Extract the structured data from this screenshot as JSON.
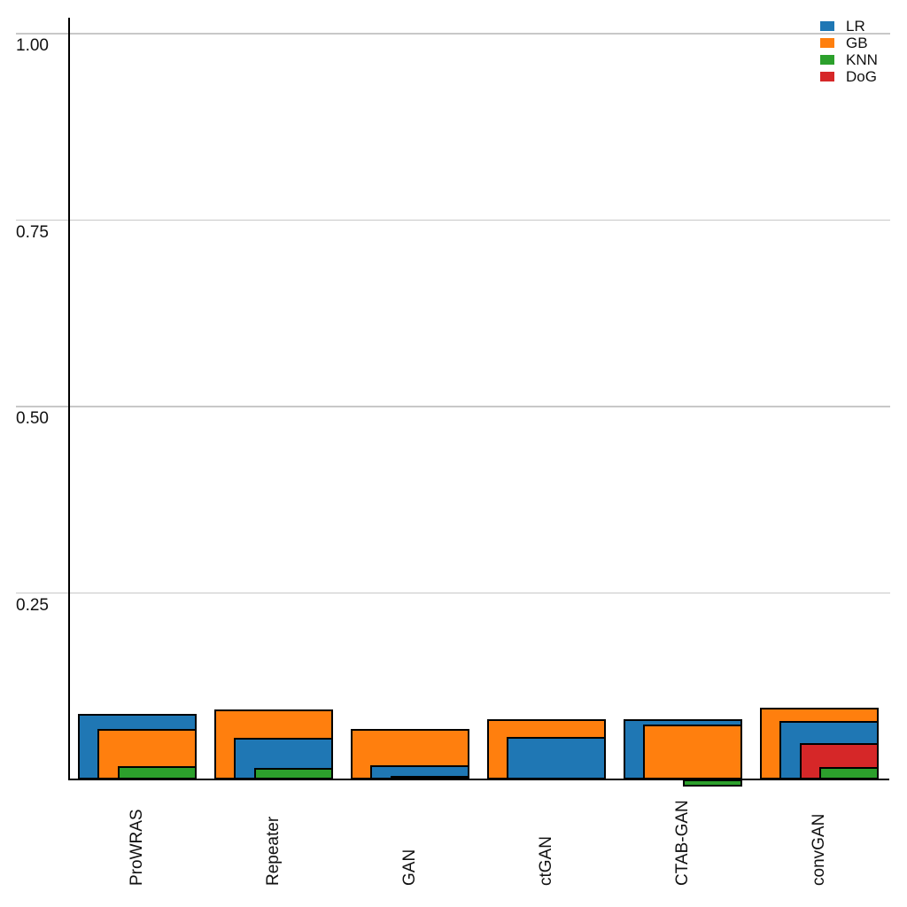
{
  "chart_data": {
    "type": "bar",
    "variant": "overlapped-nested-bars",
    "title": "",
    "xlabel": "",
    "ylabel": "",
    "categories": [
      "ProWRAS",
      "Repeater",
      "GAN",
      "ctGAN",
      "CTAB-GAN",
      "convGAN"
    ],
    "series": [
      {
        "name": "LR",
        "color": "#1f77b4",
        "values": [
          0.088,
          0.056,
          0.019,
          0.057,
          0.081,
          0.078
        ]
      },
      {
        "name": "GB",
        "color": "#ff7f0e",
        "values": [
          0.068,
          0.094,
          0.068,
          0.081,
          0.074,
          0.096
        ]
      },
      {
        "name": "KNN",
        "color": "#2ca02c",
        "values": [
          0.018,
          0.015,
          0.005,
          0.0,
          -0.01,
          0.017
        ]
      },
      {
        "name": "DoG",
        "color": "#d62728",
        "values": [
          0.0,
          0.0,
          0.0,
          0.0,
          0.0,
          0.049
        ]
      }
    ],
    "yticks": [
      {
        "value": 0.25,
        "label": "0.25"
      },
      {
        "value": 0.5,
        "label": "0.50"
      },
      {
        "value": 0.75,
        "label": "0.75"
      },
      {
        "value": 1.0,
        "label": "1.00"
      }
    ],
    "ylim": [
      0,
      1.05
    ],
    "grid": "horizontal",
    "grid_color": "#c8c8c8",
    "axis_color": "#000000",
    "bar_edge_color": "#000000",
    "legend_position": "top-right",
    "notes": "Bars within each group are layered back-to-front from tallest to shortest, right-aligned, each layer narrower; KNN is negative for CTAB-GAN (drawn below axis)."
  }
}
